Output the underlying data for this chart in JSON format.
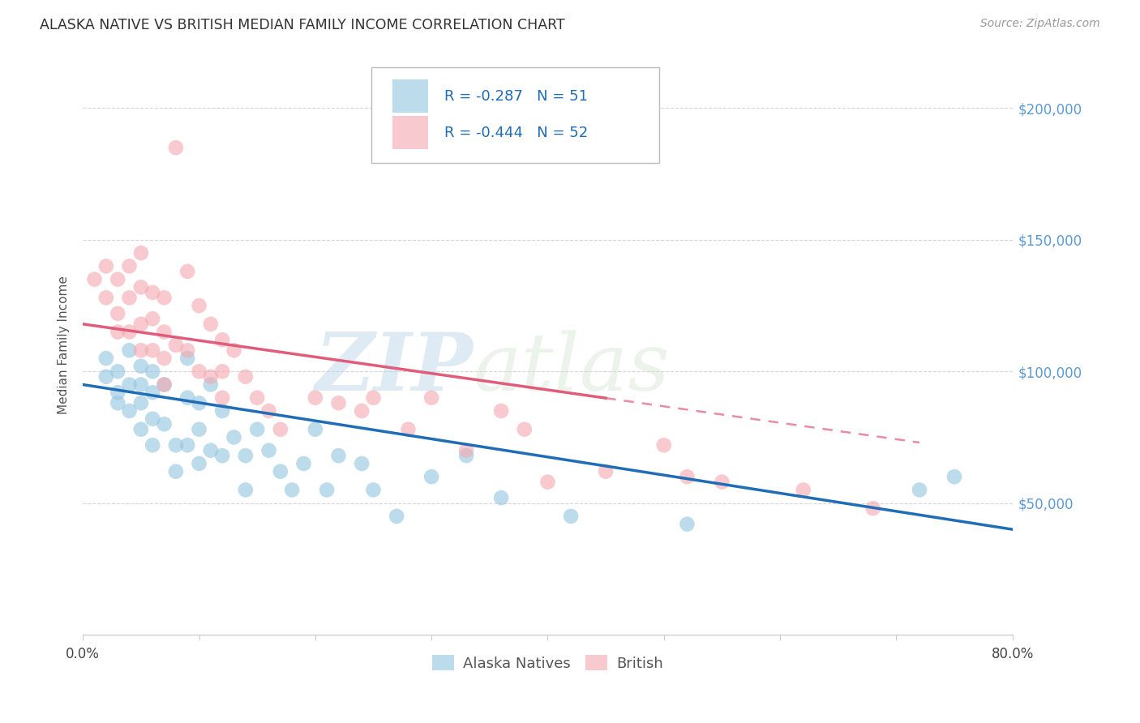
{
  "title": "ALASKA NATIVE VS BRITISH MEDIAN FAMILY INCOME CORRELATION CHART",
  "source": "Source: ZipAtlas.com",
  "ylabel": "Median Family Income",
  "ytick_labels": [
    "$50,000",
    "$100,000",
    "$150,000",
    "$200,000"
  ],
  "ytick_values": [
    50000,
    100000,
    150000,
    200000
  ],
  "xlim": [
    0.0,
    0.8
  ],
  "ylim": [
    0,
    220000
  ],
  "legend_r1": "-0.287",
  "legend_n1": "51",
  "legend_r2": "-0.444",
  "legend_n2": "52",
  "legend_label1": "Alaska Natives",
  "legend_label2": "British",
  "blue_color": "#92c5de",
  "pink_color": "#f4a8b0",
  "line_blue": "#1f6db5",
  "line_pink": "#e05c7a",
  "watermark_zip": "ZIP",
  "watermark_atlas": "atlas",
  "blue_x": [
    0.02,
    0.02,
    0.03,
    0.03,
    0.03,
    0.04,
    0.04,
    0.04,
    0.05,
    0.05,
    0.05,
    0.05,
    0.06,
    0.06,
    0.06,
    0.06,
    0.07,
    0.07,
    0.08,
    0.08,
    0.09,
    0.09,
    0.09,
    0.1,
    0.1,
    0.1,
    0.11,
    0.11,
    0.12,
    0.12,
    0.13,
    0.14,
    0.14,
    0.15,
    0.16,
    0.17,
    0.18,
    0.19,
    0.2,
    0.21,
    0.22,
    0.24,
    0.25,
    0.27,
    0.3,
    0.33,
    0.36,
    0.42,
    0.52,
    0.72,
    0.75
  ],
  "blue_y": [
    105000,
    98000,
    100000,
    92000,
    88000,
    108000,
    95000,
    85000,
    102000,
    95000,
    88000,
    78000,
    100000,
    92000,
    82000,
    72000,
    95000,
    80000,
    72000,
    62000,
    105000,
    90000,
    72000,
    88000,
    78000,
    65000,
    95000,
    70000,
    85000,
    68000,
    75000,
    68000,
    55000,
    78000,
    70000,
    62000,
    55000,
    65000,
    78000,
    55000,
    68000,
    65000,
    55000,
    45000,
    60000,
    68000,
    52000,
    45000,
    42000,
    55000,
    60000
  ],
  "pink_x": [
    0.01,
    0.02,
    0.02,
    0.03,
    0.03,
    0.03,
    0.04,
    0.04,
    0.04,
    0.05,
    0.05,
    0.05,
    0.05,
    0.06,
    0.06,
    0.06,
    0.07,
    0.07,
    0.07,
    0.07,
    0.08,
    0.08,
    0.09,
    0.09,
    0.1,
    0.1,
    0.11,
    0.11,
    0.12,
    0.12,
    0.12,
    0.13,
    0.14,
    0.15,
    0.16,
    0.17,
    0.2,
    0.22,
    0.24,
    0.25,
    0.28,
    0.3,
    0.33,
    0.36,
    0.38,
    0.4,
    0.45,
    0.5,
    0.52,
    0.55,
    0.62,
    0.68
  ],
  "pink_y": [
    135000,
    140000,
    128000,
    135000,
    122000,
    115000,
    140000,
    128000,
    115000,
    145000,
    132000,
    118000,
    108000,
    130000,
    120000,
    108000,
    128000,
    115000,
    105000,
    95000,
    185000,
    110000,
    138000,
    108000,
    125000,
    100000,
    118000,
    98000,
    112000,
    100000,
    90000,
    108000,
    98000,
    90000,
    85000,
    78000,
    90000,
    88000,
    85000,
    90000,
    78000,
    90000,
    70000,
    85000,
    78000,
    58000,
    62000,
    72000,
    60000,
    58000,
    55000,
    48000
  ]
}
